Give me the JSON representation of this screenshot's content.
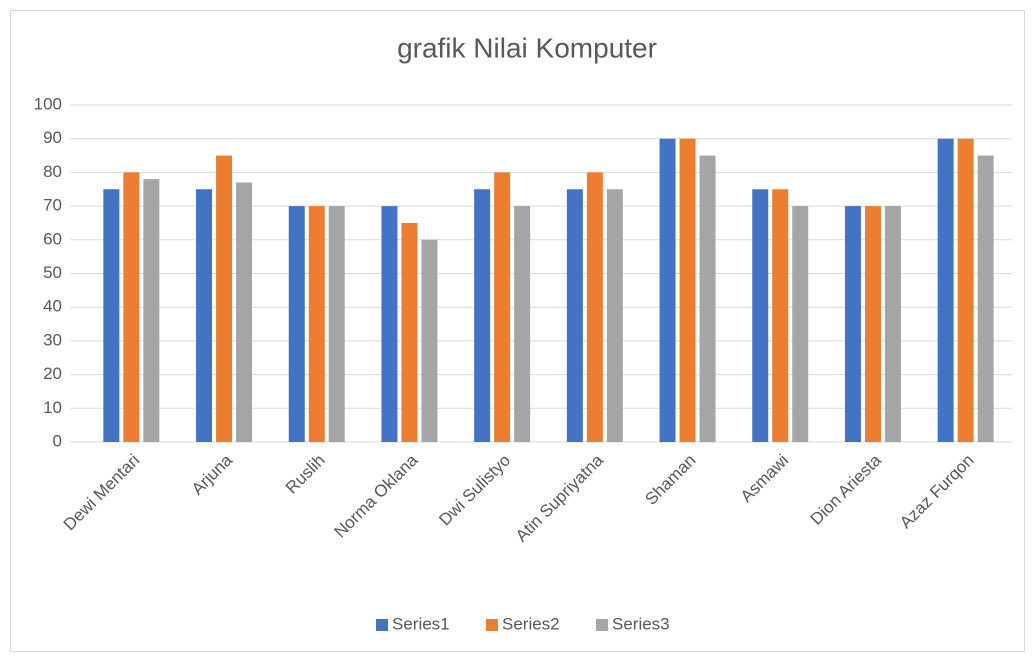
{
  "chart_data": {
    "type": "bar",
    "title": "grafik Nilai Komputer",
    "categories": [
      "Dewi Mentari",
      "Arjuna",
      "Ruslih",
      "Norma Oklana",
      "Dwi Sulistyo",
      "Atin Supriyatna",
      "Shaman",
      "Asmawi",
      "Dion Ariesta",
      "Azaz Furqon"
    ],
    "series": [
      {
        "name": "Series1",
        "color": "#4472c4",
        "values": [
          75,
          75,
          70,
          70,
          75,
          75,
          90,
          75,
          70,
          90
        ]
      },
      {
        "name": "Series2",
        "color": "#ed7d31",
        "values": [
          80,
          85,
          70,
          65,
          80,
          80,
          90,
          75,
          70,
          90
        ]
      },
      {
        "name": "Series3",
        "color": "#a5a5a5",
        "values": [
          78,
          77,
          70,
          60,
          70,
          75,
          85,
          70,
          70,
          85
        ]
      }
    ],
    "ylim": [
      0,
      100
    ],
    "yticks": [
      0,
      10,
      20,
      30,
      40,
      50,
      60,
      70,
      80,
      90,
      100
    ],
    "grid": true,
    "legend": "bottom"
  }
}
